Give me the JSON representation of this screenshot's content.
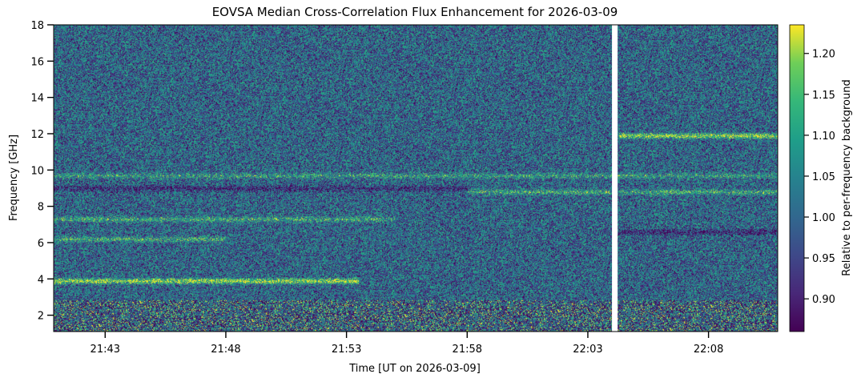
{
  "chart_data": {
    "type": "heatmap",
    "title": "EOVSA Median Cross-Correlation Flux Enhancement for 2026-03-09",
    "xlabel": "Time [UT on 2026-03-09]",
    "ylabel": "Frequency [GHz]",
    "colorbar_label": "Relative to per-frequency background",
    "colormap": "viridis",
    "x_range": [
      "21:40:52",
      "22:10:52"
    ],
    "y_range": [
      1.1,
      18.0
    ],
    "color_range": [
      0.86,
      1.235
    ],
    "x_ticks": [
      {
        "value": "21:43",
        "label": "21:43"
      },
      {
        "value": "21:48",
        "label": "21:48"
      },
      {
        "value": "21:53",
        "label": "21:53"
      },
      {
        "value": "21:58",
        "label": "21:58"
      },
      {
        "value": "22:03",
        "label": "22:03"
      },
      {
        "value": "22:08",
        "label": "22:08"
      }
    ],
    "y_ticks": [
      {
        "value": 2,
        "label": "2"
      },
      {
        "value": 4,
        "label": "4"
      },
      {
        "value": 6,
        "label": "6"
      },
      {
        "value": 8,
        "label": "8"
      },
      {
        "value": 10,
        "label": "10"
      },
      {
        "value": 12,
        "label": "12"
      },
      {
        "value": 14,
        "label": "14"
      },
      {
        "value": 16,
        "label": "16"
      },
      {
        "value": 18,
        "label": "18"
      }
    ],
    "colorbar_ticks": [
      {
        "value": 0.9,
        "label": "0.90"
      },
      {
        "value": 0.95,
        "label": "0.95"
      },
      {
        "value": 1.0,
        "label": "1.00"
      },
      {
        "value": 1.05,
        "label": "1.05"
      },
      {
        "value": 1.1,
        "label": "1.10"
      },
      {
        "value": 1.15,
        "label": "1.15"
      },
      {
        "value": 1.2,
        "label": "1.20"
      }
    ],
    "data_gap": {
      "start": "22:04:00",
      "end": "22:04:14"
    },
    "notable_bands": [
      {
        "freq_ghz": 3.9,
        "value": 1.23,
        "t_start": "21:40:52",
        "t_end": "21:53:30"
      },
      {
        "freq_ghz": 6.2,
        "value": 1.12,
        "t_start": "21:40:52",
        "t_end": "21:48:00"
      },
      {
        "freq_ghz": 7.3,
        "value": 1.12,
        "t_start": "21:40:52",
        "t_end": "21:55:00"
      },
      {
        "freq_ghz": 9.7,
        "value": 1.1,
        "t_start": "21:40:52",
        "t_end": "22:10:52"
      },
      {
        "freq_ghz": 8.8,
        "value": 1.12,
        "t_start": "21:58:00",
        "t_end": "22:10:52"
      },
      {
        "freq_ghz": 11.9,
        "value": 1.22,
        "t_start": "22:04:14",
        "t_end": "22:10:52"
      },
      {
        "freq_ghz": 6.6,
        "value": 0.88,
        "t_start": "22:04:14",
        "t_end": "22:10:52"
      },
      {
        "freq_ghz": 9.0,
        "value": 0.9,
        "t_start": "21:40:52",
        "t_end": "21:58:00"
      }
    ]
  }
}
